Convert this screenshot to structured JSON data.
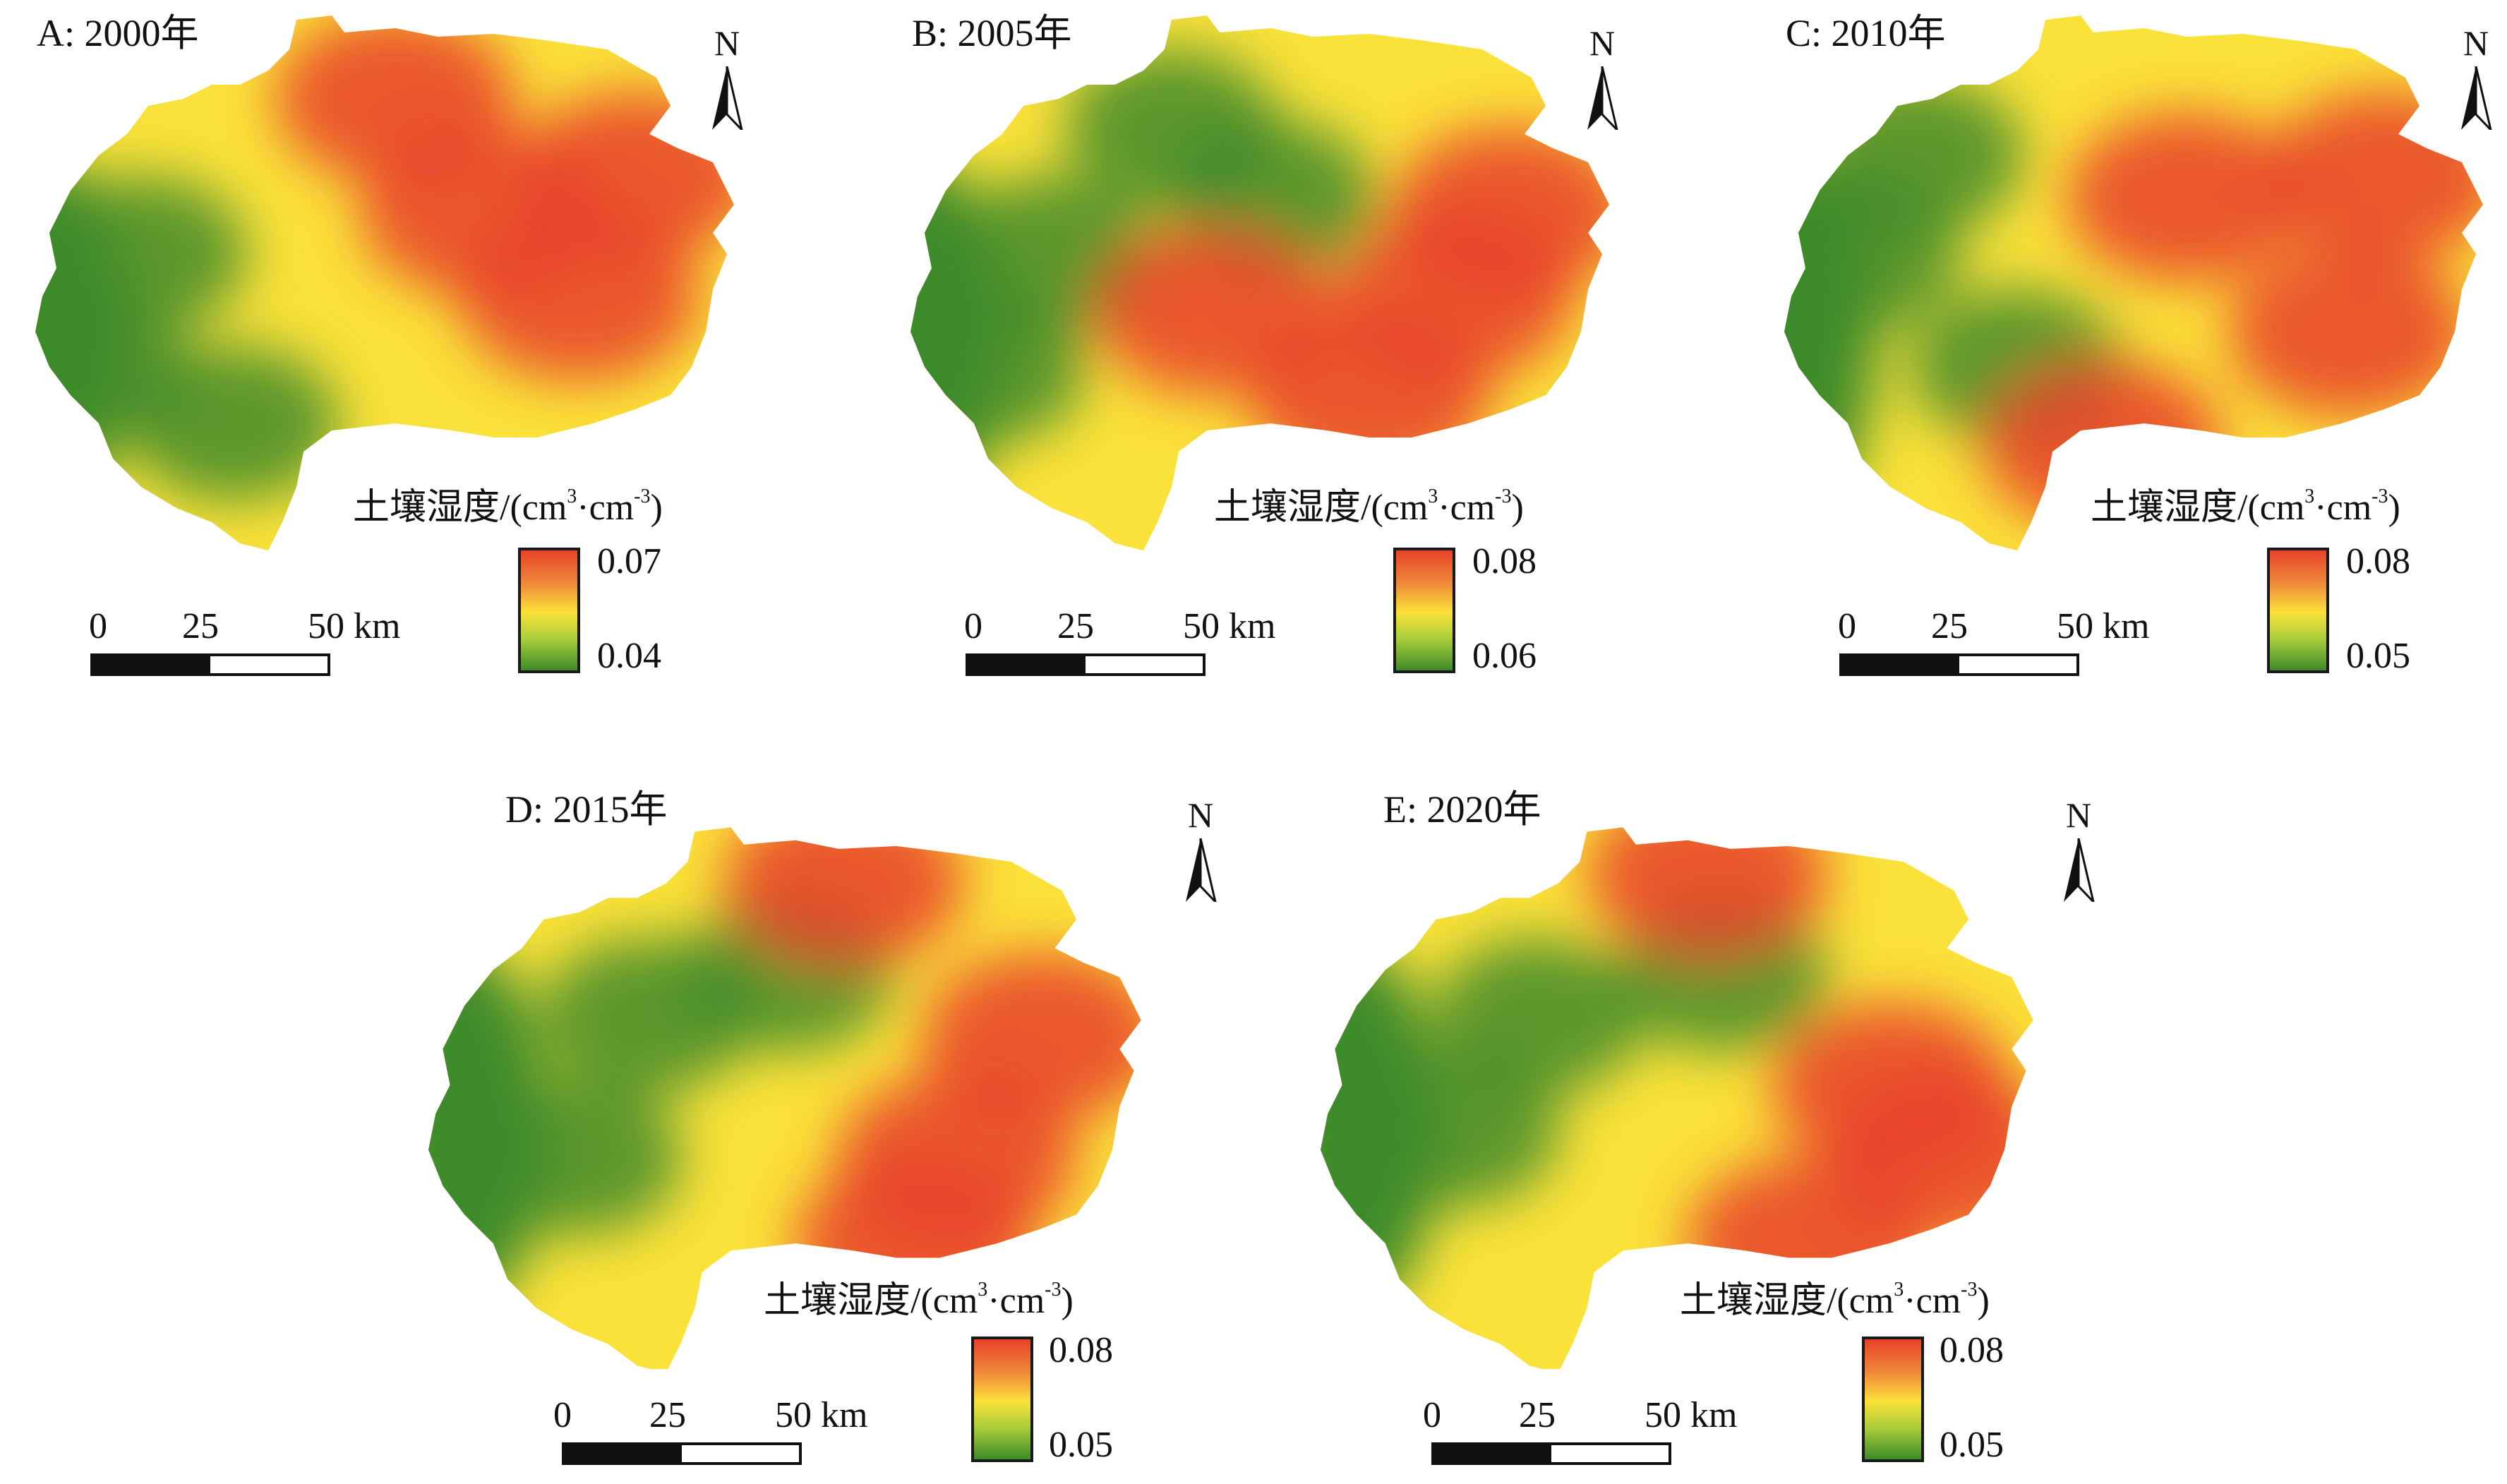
{
  "legend": {
    "title_main": "土壤湿度/(cm",
    "sup1": "3",
    "mid": "·cm",
    "sup2": "-3",
    "close": ")"
  },
  "scale": {
    "t0": "0",
    "t25": "25",
    "t50": "50 km"
  },
  "north": "N",
  "panels": [
    {
      "id": "A",
      "title": "A: 2000年",
      "max": "0.07",
      "min": "0.04"
    },
    {
      "id": "B",
      "title": "B: 2005年",
      "max": "0.08",
      "min": "0.06"
    },
    {
      "id": "C",
      "title": "C: 2010年",
      "max": "0.08",
      "min": "0.05"
    },
    {
      "id": "D",
      "title": "D: 2015年",
      "max": "0.08",
      "min": "0.05"
    },
    {
      "id": "E",
      "title": "E: 2020年",
      "max": "0.08",
      "min": "0.05"
    }
  ],
  "colors": {
    "low": "#3e8a2a",
    "mid": "#fbe23a",
    "high": "#e8412a"
  }
}
